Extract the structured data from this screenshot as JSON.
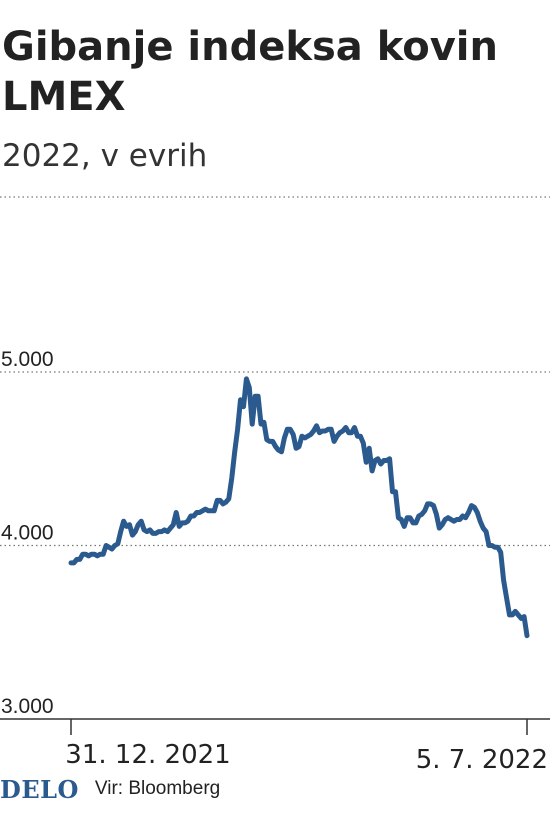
{
  "title": "Gibanje indeksa kovin LMEX",
  "subtitle": "2022, v evrih",
  "footer": {
    "logo": "DELO",
    "source": "Vir: Bloomberg"
  },
  "colors": {
    "line": "#2b5a8e",
    "grid": "#777777",
    "text": "#222222"
  },
  "chart_data": {
    "type": "line",
    "title": "Gibanje indeksa kovin LMEX",
    "subtitle": "2022, v evrih",
    "x_start_label": "31. 12. 2021",
    "x_end_label": "5. 7. 2022",
    "ylim": [
      3000,
      5000
    ],
    "y_ticks": [
      {
        "value": 3000,
        "label": "3.000"
      },
      {
        "value": 4000,
        "label": "4.000"
      },
      {
        "value": 5000,
        "label": "5.000"
      }
    ],
    "grid": true,
    "series": [
      {
        "values": [
          3900,
          3900,
          3920,
          3920,
          3950,
          3950,
          3940,
          3950,
          3950,
          3940,
          3950,
          3950,
          4000,
          3990,
          3980,
          4000,
          4010,
          4080,
          4140,
          4110,
          4120,
          4060,
          4080,
          4120,
          4140,
          4090,
          4080,
          4090,
          4070,
          4070,
          4080,
          4080,
          4090,
          4080,
          4100,
          4120,
          4190,
          4110,
          4130,
          4130,
          4140,
          4170,
          4170,
          4190,
          4190,
          4200,
          4210,
          4200,
          4200,
          4200,
          4260,
          4260,
          4240,
          4250,
          4270,
          4390,
          4540,
          4670,
          4840,
          4800,
          4960,
          4910,
          4700,
          4860,
          4860,
          4700,
          4710,
          4610,
          4600,
          4600,
          4570,
          4550,
          4540,
          4620,
          4670,
          4670,
          4640,
          4560,
          4570,
          4630,
          4620,
          4630,
          4640,
          4660,
          4690,
          4650,
          4660,
          4660,
          4670,
          4670,
          4600,
          4630,
          4650,
          4660,
          4680,
          4650,
          4650,
          4680,
          4630,
          4630,
          4590,
          4480,
          4560,
          4430,
          4490,
          4500,
          4470,
          4490,
          4490,
          4500,
          4310,
          4310,
          4160,
          4150,
          4110,
          4160,
          4160,
          4130,
          4130,
          4170,
          4180,
          4200,
          4240,
          4240,
          4230,
          4180,
          4100,
          4120,
          4150,
          4160,
          4150,
          4140,
          4150,
          4150,
          4170,
          4160,
          4190,
          4230,
          4220,
          4190,
          4140,
          4100,
          4080,
          4000,
          4000,
          3990,
          3990,
          3960,
          3800,
          3700,
          3600,
          3600,
          3620,
          3600,
          3580,
          3590,
          3480
        ]
      }
    ]
  }
}
